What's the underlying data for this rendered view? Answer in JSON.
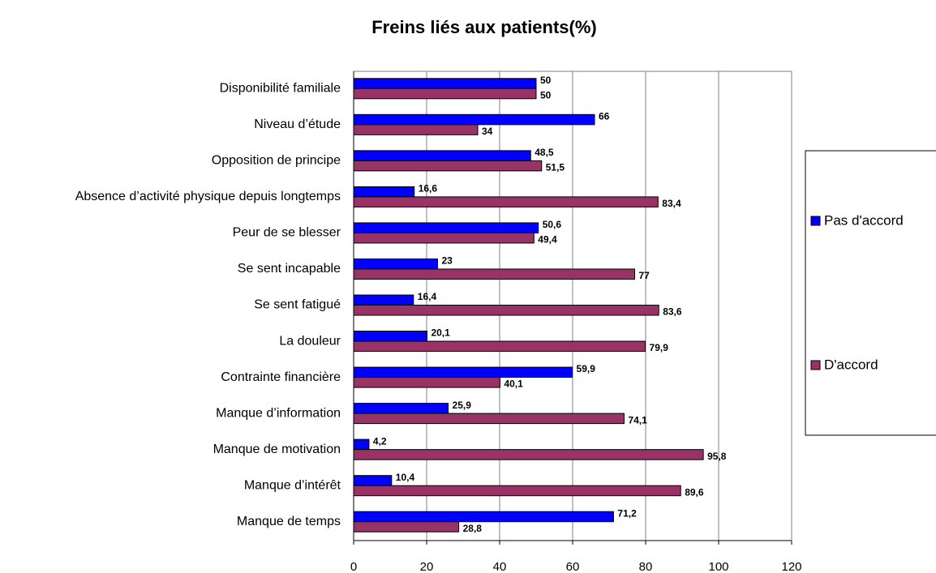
{
  "chart_data": {
    "type": "hbar",
    "title": "Freins liés aux patients(%)",
    "categories": [
      "Disponibilité familiale",
      "Niveau d’étude",
      "Opposition de principe",
      "Absence d’activité physique depuis longtemps",
      "Peur de se blesser",
      "Se sent incapable",
      "Se sent fatigué",
      "La douleur",
      "Contrainte financière",
      "Manque d’information",
      "Manque de motivation",
      "Manque d’intérêt",
      "Manque de temps"
    ],
    "series": [
      {
        "name": "Pas d'accord",
        "color": "#0000ff",
        "values": [
          50,
          66,
          48.5,
          16.6,
          50.6,
          23,
          16.4,
          20.1,
          59.9,
          25.9,
          4.2,
          10.4,
          71.2
        ],
        "value_labels": [
          "50",
          "66",
          "48,5",
          "16,6",
          "50,6",
          "23",
          "16,4",
          "20,1",
          "59,9",
          "25,9",
          "4,2",
          "10,4",
          "71,2"
        ]
      },
      {
        "name": "D'accord",
        "color": "#993366",
        "values": [
          50,
          34,
          51.5,
          83.4,
          49.4,
          77,
          83.6,
          79.9,
          40.1,
          74.1,
          95.8,
          89.6,
          28.8
        ],
        "value_labels": [
          "50",
          "34",
          "51,5",
          "83,4",
          "49,4",
          "77",
          "83,6",
          "79,9",
          "40,1",
          "74,1",
          "95,8",
          "89,6",
          "28,8"
        ]
      }
    ],
    "xlim": [
      0,
      120
    ],
    "xticks": [
      0,
      20,
      40,
      60,
      80,
      100,
      120
    ],
    "grid": true,
    "legend": "right"
  }
}
